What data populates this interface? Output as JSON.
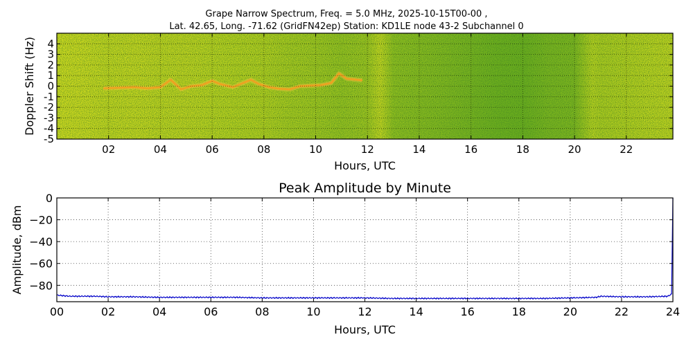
{
  "figure": {
    "title_line1": "Grape Narrow Spectrum, Freq. = 5.0 MHz, 2025-10-15T00-00 ,",
    "title_line2": "Lat.  42.65, Long. -71.62 (GridFN42ep) Station: KD1LE node 43-2 Subchannel 0"
  },
  "chart_data": [
    {
      "type": "heatmap",
      "title": "",
      "xlabel": "Hours, UTC",
      "ylabel": "Doppler Shift (Hz)",
      "xlim": [
        0,
        23.8
      ],
      "ylim": [
        -5,
        5
      ],
      "xticks": [
        "02",
        "04",
        "06",
        "08",
        "10",
        "12",
        "14",
        "16",
        "18",
        "20",
        "22"
      ],
      "yticks": [
        "4",
        "3",
        "2",
        "1",
        "0",
        "-1",
        "-2",
        "-3",
        "-4",
        "-5"
      ],
      "colors": {
        "yellow": "#e6e41e",
        "green": "#5aa81e",
        "dark_green": "#2f8a1a",
        "trace": "#f0a020"
      },
      "background_greenness_by_hour": [
        [
          0,
          0.12
        ],
        [
          1,
          0.14
        ],
        [
          2,
          0.2
        ],
        [
          3,
          0.18
        ],
        [
          4,
          0.22
        ],
        [
          5,
          0.22
        ],
        [
          6,
          0.25
        ],
        [
          7,
          0.28
        ],
        [
          8,
          0.3
        ],
        [
          9,
          0.38
        ],
        [
          10,
          0.42
        ],
        [
          11,
          0.5
        ],
        [
          12,
          0.45
        ],
        [
          12.5,
          0.2
        ],
        [
          13,
          0.55
        ],
        [
          14,
          0.6
        ],
        [
          15,
          0.65
        ],
        [
          16,
          0.72
        ],
        [
          17,
          0.78
        ],
        [
          18,
          0.8
        ],
        [
          19,
          0.7
        ],
        [
          20,
          0.68
        ],
        [
          20.7,
          0.28
        ],
        [
          21,
          0.35
        ],
        [
          22,
          0.3
        ],
        [
          23,
          0.25
        ],
        [
          23.8,
          0.22
        ]
      ],
      "doppler_trace": [
        [
          1.8,
          -0.2
        ],
        [
          2.5,
          -0.15
        ],
        [
          3.0,
          -0.1
        ],
        [
          3.5,
          -0.2
        ],
        [
          4.0,
          -0.1
        ],
        [
          4.4,
          0.6
        ],
        [
          4.8,
          -0.3
        ],
        [
          5.2,
          0.0
        ],
        [
          5.6,
          0.1
        ],
        [
          6.0,
          0.5
        ],
        [
          6.3,
          0.2
        ],
        [
          6.8,
          -0.1
        ],
        [
          7.2,
          0.3
        ],
        [
          7.5,
          0.6
        ],
        [
          7.8,
          0.2
        ],
        [
          8.2,
          -0.1
        ],
        [
          8.6,
          -0.25
        ],
        [
          9.0,
          -0.3
        ],
        [
          9.4,
          0.0
        ],
        [
          9.8,
          0.05
        ],
        [
          10.2,
          0.1
        ],
        [
          10.6,
          0.3
        ],
        [
          10.9,
          1.2
        ],
        [
          11.2,
          0.7
        ],
        [
          11.6,
          0.6
        ],
        [
          11.8,
          0.55
        ]
      ]
    },
    {
      "type": "line",
      "title": "Peak Amplitude by Minute",
      "xlabel": "Hours, UTC",
      "ylabel": "Amplitude, dBm",
      "xlim": [
        0,
        24
      ],
      "ylim": [
        -95,
        0
      ],
      "xticks": [
        "00",
        "02",
        "04",
        "06",
        "08",
        "10",
        "12",
        "14",
        "16",
        "18",
        "20",
        "22",
        "24"
      ],
      "yticks": [
        "0",
        "−20",
        "−40",
        "−60",
        "−80"
      ],
      "ytick_values": [
        0,
        -20,
        -40,
        -60,
        -80
      ],
      "grid": true,
      "line_color": "#0000c8",
      "series": [
        {
          "x": [
            0,
            0.5,
            1,
            1.5,
            2,
            3,
            4,
            5,
            6,
            7,
            8,
            9,
            10,
            11,
            12,
            13,
            14,
            15,
            16,
            17,
            18,
            19,
            20,
            21,
            21.2,
            22,
            23,
            23.8,
            23.95,
            24
          ],
          "values": [
            -89,
            -90,
            -90,
            -90,
            -90.5,
            -90.5,
            -91,
            -91,
            -91,
            -91,
            -91.5,
            -91.5,
            -91.5,
            -91.5,
            -91.5,
            -92,
            -92,
            -92,
            -92,
            -92,
            -92,
            -92,
            -91.5,
            -91,
            -90,
            -90.5,
            -90.5,
            -90,
            -88,
            0
          ]
        }
      ]
    }
  ]
}
